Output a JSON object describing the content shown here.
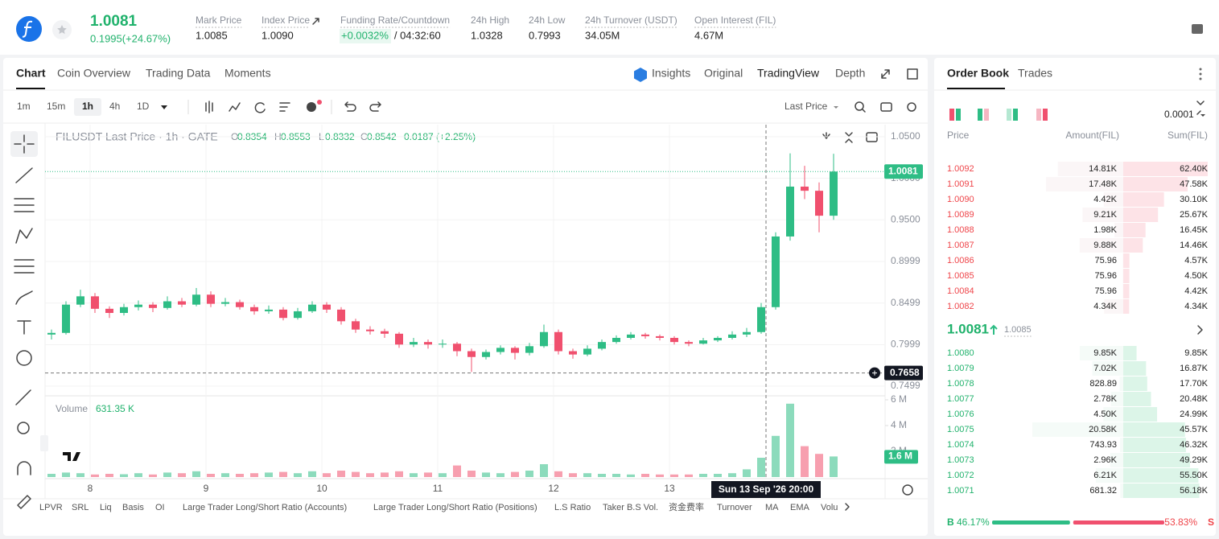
{
  "header": {
    "price": "1.0081",
    "change": "0.1995(+24.67%)",
    "stats": [
      {
        "label": "Mark Price",
        "value": "1.0085"
      },
      {
        "label": "Index Price",
        "value": "1.0090"
      },
      {
        "label": "Funding Rate/Countdown",
        "value": "+0.0032%",
        "extra": "/ 04:32:60"
      },
      {
        "label": "24h High",
        "value": "1.0328"
      },
      {
        "label": "24h Low",
        "value": "0.7993"
      },
      {
        "label": "24h Turnover (USDT)",
        "value": "34.05M"
      },
      {
        "label": "Open Interest (FIL)",
        "value": "4.67M"
      }
    ]
  },
  "tabs": [
    "Chart",
    "Coin Overview",
    "Trading Data",
    "Moments"
  ],
  "view_tabs": [
    "Insights",
    "Original",
    "TradingView",
    "Depth"
  ],
  "intervals": [
    "1m",
    "15m",
    "1h",
    "4h",
    "1D"
  ],
  "price_type": "Last Price",
  "legend": {
    "title": "FILUSDT Last Price · 1h · GATE",
    "ohlc": [
      {
        "key": "O",
        "value": "0.8354"
      },
      {
        "key": "H",
        "value": "0.8553"
      },
      {
        "key": "L",
        "value": "0.8332"
      },
      {
        "key": "C",
        "value": "0.8542"
      }
    ],
    "change": "0.0187 (+2.25%)",
    "volume_label": "Volume",
    "volume_value": "631.35 K"
  },
  "chart_data": {
    "type": "candlestick",
    "x_labels": [
      "8",
      "9",
      "10",
      "11",
      "12",
      "13"
    ],
    "ylim": [
      0.7383,
      1.0645
    ],
    "yticks": [
      {
        "value": 1.05,
        "label": "1.0500"
      },
      {
        "value": 1.0,
        "label": "1.0000"
      },
      {
        "value": 0.95,
        "label": "0.9500"
      },
      {
        "value": 0.8999,
        "label": "0.8999"
      },
      {
        "value": 0.8499,
        "label": "0.8499"
      },
      {
        "value": 0.7999,
        "label": "0.7999"
      },
      {
        "value": 0.7499,
        "label": "0.7499"
      }
    ],
    "last_price": 1.0081,
    "crosshair_price": 0.7658,
    "crosshair_time": "Sun 13 Sep '26  20:00",
    "volume_lim": [
      0,
      6.25
    ],
    "volume_ticks": [
      {
        "value": 6,
        "label": "6 M"
      },
      {
        "value": 4,
        "label": "4 M"
      },
      {
        "value": 2,
        "label": "2 M"
      }
    ],
    "volume_last": {
      "value": 1.6,
      "label": "1.6 M"
    },
    "colors": {
      "up": "#2ebd85",
      "down": "#f0506e"
    },
    "ohlc": [
      [
        0.812,
        0.818,
        0.806,
        0.814
      ],
      [
        0.814,
        0.852,
        0.812,
        0.848
      ],
      [
        0.848,
        0.866,
        0.845,
        0.858
      ],
      [
        0.858,
        0.862,
        0.838,
        0.843
      ],
      [
        0.843,
        0.846,
        0.832,
        0.838
      ],
      [
        0.838,
        0.849,
        0.835,
        0.845
      ],
      [
        0.845,
        0.853,
        0.841,
        0.848
      ],
      [
        0.848,
        0.851,
        0.839,
        0.844
      ],
      [
        0.844,
        0.858,
        0.842,
        0.852
      ],
      [
        0.852,
        0.856,
        0.845,
        0.848
      ],
      [
        0.848,
        0.868,
        0.846,
        0.86
      ],
      [
        0.86,
        0.864,
        0.845,
        0.849
      ],
      [
        0.849,
        0.856,
        0.846,
        0.851
      ],
      [
        0.851,
        0.854,
        0.842,
        0.845
      ],
      [
        0.845,
        0.848,
        0.836,
        0.84
      ],
      [
        0.84,
        0.847,
        0.837,
        0.842
      ],
      [
        0.842,
        0.845,
        0.829,
        0.832
      ],
      [
        0.832,
        0.844,
        0.83,
        0.84
      ],
      [
        0.84,
        0.852,
        0.838,
        0.848
      ],
      [
        0.848,
        0.851,
        0.838,
        0.842
      ],
      [
        0.842,
        0.845,
        0.824,
        0.828
      ],
      [
        0.828,
        0.831,
        0.814,
        0.818
      ],
      [
        0.818,
        0.822,
        0.812,
        0.816
      ],
      [
        0.816,
        0.819,
        0.808,
        0.813
      ],
      [
        0.813,
        0.815,
        0.796,
        0.8
      ],
      [
        0.8,
        0.808,
        0.797,
        0.803
      ],
      [
        0.803,
        0.806,
        0.795,
        0.8
      ],
      [
        0.8,
        0.806,
        0.796,
        0.801
      ],
      [
        0.801,
        0.803,
        0.786,
        0.792
      ],
      [
        0.792,
        0.795,
        0.767,
        0.785
      ],
      [
        0.785,
        0.794,
        0.782,
        0.791
      ],
      [
        0.791,
        0.799,
        0.788,
        0.796
      ],
      [
        0.796,
        0.798,
        0.782,
        0.79
      ],
      [
        0.79,
        0.802,
        0.787,
        0.798
      ],
      [
        0.798,
        0.824,
        0.796,
        0.815
      ],
      [
        0.815,
        0.818,
        0.788,
        0.792
      ],
      [
        0.792,
        0.795,
        0.783,
        0.788
      ],
      [
        0.788,
        0.799,
        0.786,
        0.795
      ],
      [
        0.795,
        0.806,
        0.793,
        0.803
      ],
      [
        0.803,
        0.811,
        0.801,
        0.808
      ],
      [
        0.808,
        0.815,
        0.806,
        0.812
      ],
      [
        0.812,
        0.814,
        0.807,
        0.81
      ],
      [
        0.81,
        0.812,
        0.805,
        0.808
      ],
      [
        0.808,
        0.81,
        0.8,
        0.803
      ],
      [
        0.803,
        0.805,
        0.798,
        0.801
      ],
      [
        0.801,
        0.808,
        0.8,
        0.805
      ],
      [
        0.805,
        0.81,
        0.803,
        0.808
      ],
      [
        0.808,
        0.816,
        0.806,
        0.812
      ],
      [
        0.812,
        0.82,
        0.809,
        0.815
      ],
      [
        0.815,
        0.85,
        0.813,
        0.845
      ],
      [
        0.845,
        0.935,
        0.842,
        0.93
      ],
      [
        0.93,
        1.03,
        0.925,
        0.99
      ],
      [
        0.99,
        1.015,
        0.975,
        0.985
      ],
      [
        0.985,
        0.995,
        0.935,
        0.955
      ],
      [
        0.955,
        1.0295,
        0.95,
        1.0081
      ]
    ],
    "volume": [
      0.25,
      0.35,
      0.3,
      0.2,
      0.25,
      0.22,
      0.3,
      0.2,
      0.35,
      0.3,
      0.45,
      0.25,
      0.3,
      0.25,
      0.3,
      0.35,
      0.4,
      0.3,
      0.45,
      0.3,
      0.5,
      0.4,
      0.3,
      0.35,
      0.45,
      0.3,
      0.35,
      0.3,
      0.9,
      0.5,
      0.35,
      0.3,
      0.4,
      0.5,
      1.0,
      0.45,
      0.3,
      0.3,
      0.25,
      0.25,
      0.2,
      0.25,
      0.2,
      0.2,
      0.2,
      0.25,
      0.25,
      0.3,
      0.6,
      1.5,
      3.2,
      5.7,
      2.4,
      1.8,
      1.6
    ]
  },
  "indicators": [
    "LPVR",
    "SRL",
    "Liq",
    "Basis",
    "OI",
    "Large Trader Long/Short Ratio (Accounts)",
    "Large Trader Long/Short Ratio (Positions)",
    "L.S Ratio",
    "Taker B.S Vol.",
    "资金费率",
    "Turnover",
    "MA",
    "EMA",
    "Volu"
  ],
  "order_book": {
    "tabs": [
      "Order Book",
      "Trades"
    ],
    "precision": "0.0001",
    "columns": [
      "Price",
      "Amount(FIL)",
      "Sum(FIL)"
    ],
    "asks": [
      [
        "1.0092",
        "14.81K",
        "62.40K"
      ],
      [
        "1.0091",
        "17.48K",
        "47.58K"
      ],
      [
        "1.0090",
        "4.42K",
        "30.10K"
      ],
      [
        "1.0089",
        "9.21K",
        "25.67K"
      ],
      [
        "1.0088",
        "1.98K",
        "16.45K"
      ],
      [
        "1.0087",
        "9.88K",
        "14.46K"
      ],
      [
        "1.0086",
        "75.96",
        "4.57K"
      ],
      [
        "1.0085",
        "75.96",
        "4.50K"
      ],
      [
        "1.0084",
        "75.96",
        "4.42K"
      ],
      [
        "1.0082",
        "4.34K",
        "4.34K"
      ]
    ],
    "last": "1.0081",
    "mark": "1.0085",
    "bids": [
      [
        "1.0080",
        "9.85K",
        "9.85K"
      ],
      [
        "1.0079",
        "7.02K",
        "16.87K"
      ],
      [
        "1.0078",
        "828.89",
        "17.70K"
      ],
      [
        "1.0077",
        "2.78K",
        "20.48K"
      ],
      [
        "1.0076",
        "4.50K",
        "24.99K"
      ],
      [
        "1.0075",
        "20.58K",
        "45.57K"
      ],
      [
        "1.0074",
        "743.93",
        "46.32K"
      ],
      [
        "1.0073",
        "2.96K",
        "49.29K"
      ],
      [
        "1.0072",
        "6.21K",
        "55.50K"
      ],
      [
        "1.0071",
        "681.32",
        "56.18K"
      ]
    ],
    "buy_key": "B",
    "buy": {
      "value": 46.17,
      "label": "46.17%"
    },
    "sell": {
      "value": 53.83,
      "label": "53.83%"
    },
    "sell_key": "S"
  }
}
